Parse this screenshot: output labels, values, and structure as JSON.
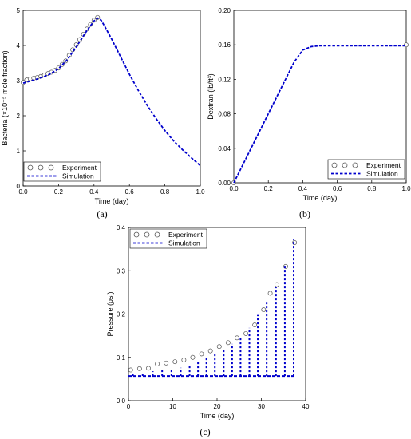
{
  "chart_data": [
    {
      "id": "a",
      "type": "scatter+line",
      "panel_label": "(a)",
      "xlabel": "Time (day)",
      "ylabel": "Bacteria (×10⁻⁵ mole fraction)",
      "xlim": [
        0,
        1
      ],
      "ylim": [
        0,
        5
      ],
      "xticks": [
        "0.0",
        "0.2",
        "0.4",
        "0.6",
        "0.8",
        "1.0"
      ],
      "yticks": [
        "0",
        "1",
        "2",
        "3",
        "4",
        "5"
      ],
      "legend_position": "bottom-left",
      "series": [
        {
          "name": "Experiment",
          "kind": "markers",
          "points": [
            [
              0.0,
              2.95
            ],
            [
              0.02,
              3.02
            ],
            [
              0.04,
              3.05
            ],
            [
              0.06,
              3.07
            ],
            [
              0.08,
              3.09
            ],
            [
              0.1,
              3.12
            ],
            [
              0.12,
              3.16
            ],
            [
              0.14,
              3.2
            ],
            [
              0.16,
              3.24
            ],
            [
              0.18,
              3.29
            ],
            [
              0.2,
              3.36
            ],
            [
              0.22,
              3.46
            ],
            [
              0.24,
              3.56
            ],
            [
              0.26,
              3.72
            ],
            [
              0.28,
              3.88
            ],
            [
              0.3,
              4.02
            ],
            [
              0.32,
              4.17
            ],
            [
              0.34,
              4.32
            ],
            [
              0.36,
              4.47
            ],
            [
              0.38,
              4.6
            ],
            [
              0.4,
              4.72
            ],
            [
              0.42,
              4.8
            ]
          ]
        },
        {
          "name": "Simulation",
          "kind": "dashed-line",
          "color": "#0000cc",
          "points": [
            [
              0.0,
              2.93
            ],
            [
              0.05,
              3.0
            ],
            [
              0.1,
              3.08
            ],
            [
              0.15,
              3.18
            ],
            [
              0.2,
              3.34
            ],
            [
              0.25,
              3.6
            ],
            [
              0.3,
              3.96
            ],
            [
              0.35,
              4.35
            ],
            [
              0.4,
              4.7
            ],
            [
              0.42,
              4.78
            ],
            [
              0.44,
              4.72
            ],
            [
              0.46,
              4.55
            ],
            [
              0.5,
              4.18
            ],
            [
              0.55,
              3.68
            ],
            [
              0.6,
              3.18
            ],
            [
              0.65,
              2.72
            ],
            [
              0.7,
              2.3
            ],
            [
              0.75,
              1.92
            ],
            [
              0.8,
              1.58
            ],
            [
              0.85,
              1.28
            ],
            [
              0.9,
              1.03
            ],
            [
              0.95,
              0.8
            ],
            [
              1.0,
              0.58
            ]
          ]
        }
      ]
    },
    {
      "id": "b",
      "type": "scatter+line",
      "panel_label": "(b)",
      "xlabel": "Time (day)",
      "ylabel": "Dextran (lb/ft³)",
      "xlim": [
        0,
        1
      ],
      "ylim": [
        0,
        0.2
      ],
      "xticks": [
        "0.0",
        "0.2",
        "0.4",
        "0.6",
        "0.8",
        "1.0"
      ],
      "yticks": [
        "0.00",
        "0.04",
        "0.08",
        "0.12",
        "0.16",
        "0.20"
      ],
      "legend_position": "bottom-right",
      "series": [
        {
          "name": "Experiment",
          "kind": "markers",
          "points": [
            [
              0.0,
              0.0
            ],
            [
              1.0,
              0.16
            ]
          ]
        },
        {
          "name": "Simulation",
          "kind": "dashed-line",
          "color": "#0000cc",
          "points": [
            [
              0.0,
              0.0
            ],
            [
              0.05,
              0.02
            ],
            [
              0.1,
              0.04
            ],
            [
              0.15,
              0.06
            ],
            [
              0.2,
              0.08
            ],
            [
              0.25,
              0.1
            ],
            [
              0.3,
              0.12
            ],
            [
              0.35,
              0.14
            ],
            [
              0.4,
              0.154
            ],
            [
              0.45,
              0.158
            ],
            [
              0.5,
              0.159
            ],
            [
              0.6,
              0.159
            ],
            [
              0.8,
              0.159
            ],
            [
              1.0,
              0.159
            ]
          ]
        }
      ]
    },
    {
      "id": "c",
      "type": "scatter+line",
      "panel_label": "(c)",
      "xlabel": "Time (day)",
      "ylabel": "Pressure (psi)",
      "xlim": [
        0,
        40
      ],
      "ylim": [
        0,
        0.4
      ],
      "xticks": [
        "0",
        "10",
        "20",
        "30",
        "40"
      ],
      "yticks": [
        "0.0",
        "0.1",
        "0.2",
        "0.3",
        "0.4"
      ],
      "legend_position": "top-left",
      "series": [
        {
          "name": "Experiment",
          "kind": "markers",
          "points": [
            [
              0.5,
              0.071
            ],
            [
              2.5,
              0.074
            ],
            [
              4.5,
              0.075
            ],
            [
              6.5,
              0.085
            ],
            [
              8.5,
              0.087
            ],
            [
              10.5,
              0.09
            ],
            [
              12.5,
              0.094
            ],
            [
              14.5,
              0.1
            ],
            [
              16.5,
              0.108
            ],
            [
              18.5,
              0.115
            ],
            [
              20.5,
              0.125
            ],
            [
              22.5,
              0.134
            ],
            [
              24.5,
              0.145
            ],
            [
              26.5,
              0.155
            ],
            [
              28.5,
              0.175
            ],
            [
              30.5,
              0.21
            ],
            [
              32.0,
              0.248
            ],
            [
              33.5,
              0.268
            ],
            [
              35.5,
              0.31
            ],
            [
              37.5,
              0.365
            ]
          ]
        },
        {
          "name": "Simulation",
          "kind": "dashed-sawtooth",
          "color": "#0000cc",
          "baseline": 0.057,
          "spikes": [
            [
              1.0,
              0.063
            ],
            [
              3.2,
              0.065
            ],
            [
              5.5,
              0.068
            ],
            [
              7.6,
              0.07
            ],
            [
              9.7,
              0.073
            ],
            [
              11.8,
              0.076
            ],
            [
              13.8,
              0.081
            ],
            [
              15.7,
              0.089
            ],
            [
              17.6,
              0.098
            ],
            [
              19.5,
              0.108
            ],
            [
              21.5,
              0.118
            ],
            [
              23.4,
              0.131
            ],
            [
              25.3,
              0.148
            ],
            [
              27.3,
              0.168
            ],
            [
              29.2,
              0.198
            ],
            [
              31.2,
              0.228
            ],
            [
              33.3,
              0.262
            ],
            [
              35.3,
              0.312
            ],
            [
              37.3,
              0.372
            ]
          ]
        }
      ]
    }
  ]
}
